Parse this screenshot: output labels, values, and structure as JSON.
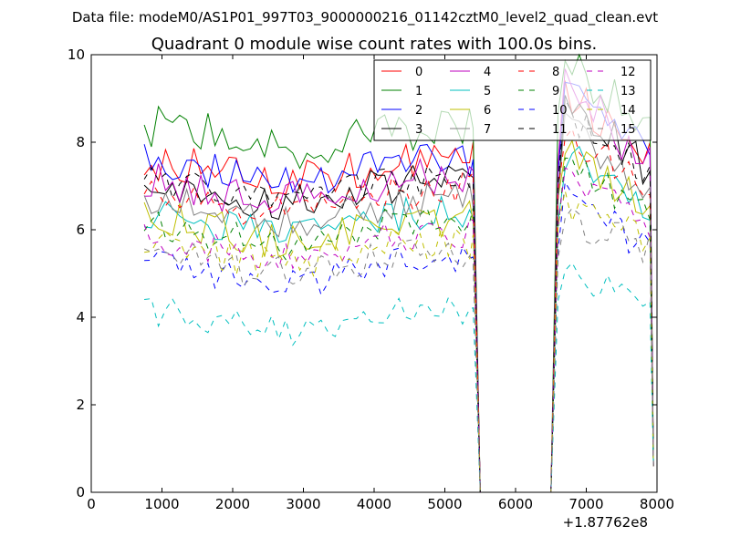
{
  "page": {
    "suptitle": "Data file: modeM0/AS1P01_997T03_9000000216_01142cztM0_level2_quad_clean.evt"
  },
  "chart_data": {
    "type": "line",
    "title": "Quadrant 0 module wise count rates with 100.0s bins.",
    "xlabel": "",
    "ylabel": "",
    "x_offset_label": "+1.87762e8",
    "xlim": [
      0,
      8000
    ],
    "ylim": [
      0,
      10
    ],
    "xticks": [
      "0",
      "1000",
      "2000",
      "3000",
      "4000",
      "5000",
      "6000",
      "7000",
      "8000"
    ],
    "yticks": [
      "0",
      "2",
      "4",
      "6",
      "8",
      "10"
    ],
    "legend_position": "top-right",
    "segments": [
      {
        "start": 750,
        "end": 5400,
        "step": 100
      },
      {
        "start": 5400,
        "end": 5500,
        "step": 100
      },
      {
        "start": 5500,
        "end": 6500,
        "step": 100
      },
      {
        "start": 6500,
        "end": 6800,
        "step": 100
      },
      {
        "start": 6800,
        "end": 7900,
        "step": 100
      },
      {
        "start": 7900,
        "end": 7950,
        "step": 50
      }
    ],
    "series": [
      {
        "name": "0",
        "color": "#ff0000",
        "dash": "solid",
        "base": 7.6,
        "amp": 0.45,
        "peak": 9.2
      },
      {
        "name": "1",
        "color": "#008000",
        "dash": "solid",
        "base": 8.4,
        "amp": 0.55,
        "peak": 9.9
      },
      {
        "name": "2",
        "color": "#0000ff",
        "dash": "solid",
        "base": 7.6,
        "amp": 0.4,
        "peak": 9.4
      },
      {
        "name": "3",
        "color": "#000000",
        "dash": "solid",
        "base": 7.1,
        "amp": 0.45,
        "peak": 9.3
      },
      {
        "name": "4",
        "color": "#bf00bf",
        "dash": "solid",
        "base": 7.2,
        "amp": 0.5,
        "peak": 9.5
      },
      {
        "name": "5",
        "color": "#00bfbf",
        "dash": "solid",
        "base": 6.4,
        "amp": 0.4,
        "peak": 7.8
      },
      {
        "name": "6",
        "color": "#bfbf00",
        "dash": "solid",
        "base": 6.3,
        "amp": 0.45,
        "peak": 7.9
      },
      {
        "name": "7",
        "color": "#808080",
        "dash": "solid",
        "base": 6.7,
        "amp": 0.4,
        "peak": 8.5
      },
      {
        "name": "8",
        "color": "#ff0000",
        "dash": "dashed",
        "base": 6.9,
        "amp": 0.4,
        "peak": 8.3
      },
      {
        "name": "9",
        "color": "#008000",
        "dash": "dashed",
        "base": 6.2,
        "amp": 0.4,
        "peak": 7.6
      },
      {
        "name": "10",
        "color": "#0000ff",
        "dash": "dashed",
        "base": 5.3,
        "amp": 0.4,
        "peak": 6.9
      },
      {
        "name": "11",
        "color": "#000000",
        "dash": "dashed",
        "base": 7.2,
        "amp": 0.4,
        "peak": 8.7
      },
      {
        "name": "12",
        "color": "#bf00bf",
        "dash": "dashed",
        "base": 5.9,
        "amp": 0.4,
        "peak": 7.3
      },
      {
        "name": "13",
        "color": "#00bfbf",
        "dash": "dashed",
        "base": 4.2,
        "amp": 0.35,
        "peak": 5.1
      },
      {
        "name": "14",
        "color": "#bfbf00",
        "dash": "dashed",
        "base": 5.7,
        "amp": 0.4,
        "peak": 6.6
      },
      {
        "name": "15",
        "color": "#808080",
        "dash": "dashed",
        "base": 5.5,
        "amp": 0.4,
        "peak": 6.2
      }
    ]
  }
}
